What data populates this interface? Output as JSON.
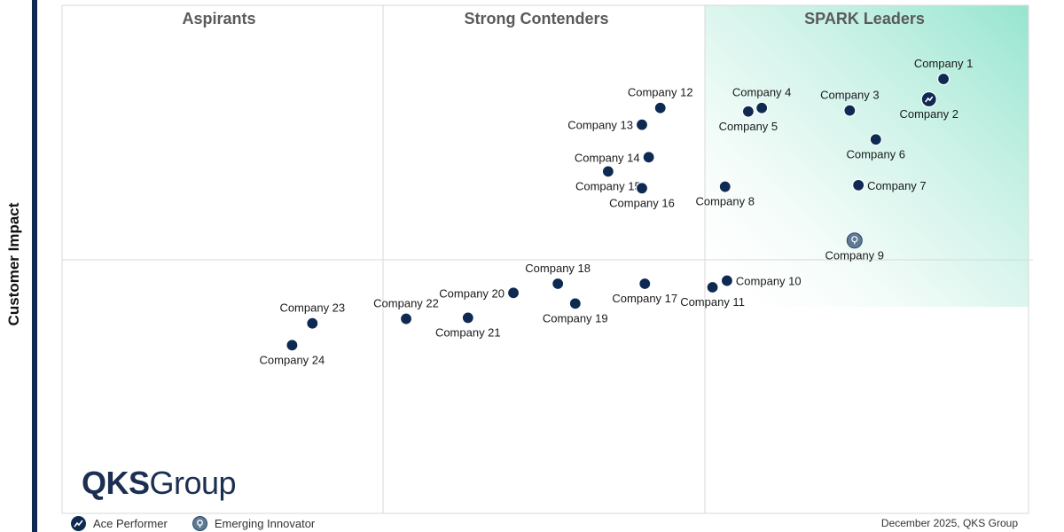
{
  "chart_data": {
    "type": "scatter",
    "ylabel": "Customer Impact",
    "xlabel": "",
    "quadrants": [
      "Aspirants",
      "Strong Contenders",
      "SPARK Leaders"
    ],
    "legend": [
      {
        "label": "Ace Performer",
        "icon": "ace-performer-icon"
      },
      {
        "label": "Emerging Innovator",
        "icon": "emerging-innovator-icon"
      }
    ],
    "points": [
      {
        "name": "Company 1",
        "x": 9.12,
        "y": 8.55,
        "label_pos": "above"
      },
      {
        "name": "Company 2",
        "x": 8.97,
        "y": 8.15,
        "label_pos": "below",
        "badge": "ace"
      },
      {
        "name": "Company 3",
        "x": 8.15,
        "y": 7.93,
        "label_pos": "above"
      },
      {
        "name": "Company 4",
        "x": 7.24,
        "y": 7.98,
        "label_pos": "above"
      },
      {
        "name": "Company 5",
        "x": 7.1,
        "y": 7.91,
        "label_pos": "below"
      },
      {
        "name": "Company 6",
        "x": 8.42,
        "y": 7.36,
        "label_pos": "below"
      },
      {
        "name": "Company 7",
        "x": 8.24,
        "y": 6.46,
        "label_pos": "right"
      },
      {
        "name": "Company 8",
        "x": 6.86,
        "y": 6.43,
        "label_pos": "below"
      },
      {
        "name": "Company 9",
        "x": 8.2,
        "y": 5.37,
        "label_pos": "below",
        "badge": "innovator"
      },
      {
        "name": "Company 10",
        "x": 6.88,
        "y": 4.58,
        "label_pos": "right"
      },
      {
        "name": "Company 11",
        "x": 6.73,
        "y": 4.45,
        "label_pos": "below"
      },
      {
        "name": "Company 12",
        "x": 6.19,
        "y": 7.98,
        "label_pos": "above"
      },
      {
        "name": "Company 13",
        "x": 6.0,
        "y": 7.65,
        "label_pos": "left"
      },
      {
        "name": "Company 14",
        "x": 6.07,
        "y": 7.01,
        "label_pos": "left"
      },
      {
        "name": "Company 15",
        "x": 5.65,
        "y": 6.73,
        "label_pos": "below"
      },
      {
        "name": "Company 16",
        "x": 6.0,
        "y": 6.4,
        "label_pos": "below"
      },
      {
        "name": "Company 17",
        "x": 6.03,
        "y": 4.52,
        "label_pos": "below"
      },
      {
        "name": "Company 18",
        "x": 5.13,
        "y": 4.52,
        "label_pos": "above"
      },
      {
        "name": "Company 19",
        "x": 5.31,
        "y": 4.13,
        "label_pos": "below"
      },
      {
        "name": "Company 20",
        "x": 4.67,
        "y": 4.34,
        "label_pos": "left"
      },
      {
        "name": "Company 21",
        "x": 4.2,
        "y": 3.85,
        "label_pos": "below"
      },
      {
        "name": "Company 22",
        "x": 3.56,
        "y": 3.83,
        "label_pos": "above"
      },
      {
        "name": "Company 23",
        "x": 2.59,
        "y": 3.74,
        "label_pos": "above"
      },
      {
        "name": "Company 24",
        "x": 2.38,
        "y": 3.31,
        "label_pos": "below"
      }
    ]
  },
  "logo": {
    "part1": "QKS",
    "part2": "Group"
  },
  "footnote": "December 2025, QKS Group",
  "colors": {
    "point": "#0e2a52",
    "leaders_gradient": "#8fe3cc",
    "grid": "#d8d8d8",
    "innovator": "#5f7a95"
  }
}
